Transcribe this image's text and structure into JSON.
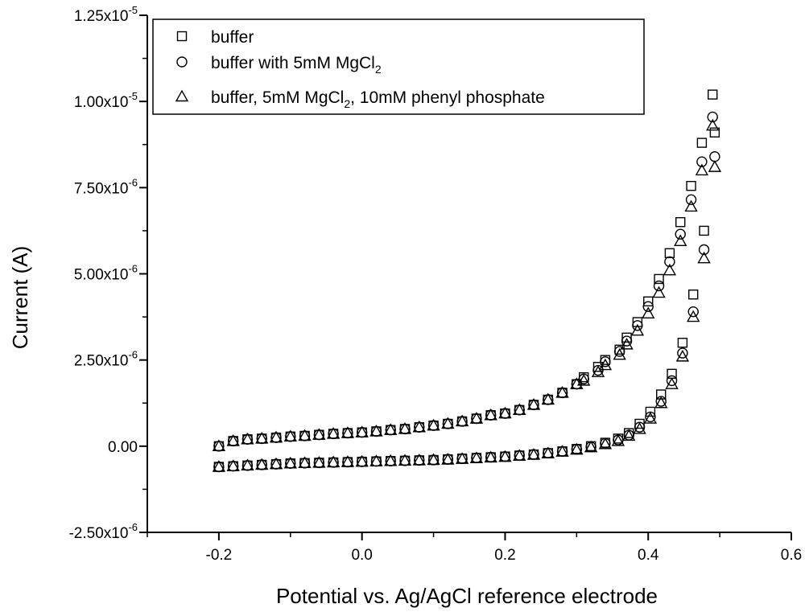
{
  "chart_data": {
    "type": "scatter",
    "title": "",
    "xlabel": "Potential vs. Ag/AgCl reference electrode",
    "ylabel": "Current (A)",
    "xlim": [
      -0.3,
      0.6
    ],
    "ylim": [
      -2.5e-06,
      1.25e-05
    ],
    "x_ticks": [
      -0.2,
      0.0,
      0.2,
      0.4,
      0.6
    ],
    "x_tick_labels": [
      "-0.2",
      "0.0",
      "0.2",
      "0.4",
      "0.6"
    ],
    "y_ticks": [
      -2.5e-06,
      0,
      2.5e-06,
      5e-06,
      7.5e-06,
      1e-05,
      1.25e-05
    ],
    "y_tick_labels": [
      {
        "mantissa": "-2.50x10",
        "exp": "-6"
      },
      {
        "mantissa": "0.00",
        "exp": ""
      },
      {
        "mantissa": "2.50x10",
        "exp": "-6"
      },
      {
        "mantissa": "5.00x10",
        "exp": "-6"
      },
      {
        "mantissa": "7.50x10",
        "exp": "-6"
      },
      {
        "mantissa": "1.00x10",
        "exp": "-5"
      },
      {
        "mantissa": "1.25x10",
        "exp": "-5"
      }
    ],
    "legend": [
      {
        "marker": "square",
        "parts": [
          {
            "t": "buffer"
          }
        ]
      },
      {
        "marker": "circle",
        "parts": [
          {
            "t": "buffer with 5mM MgCl"
          },
          {
            "t": "2",
            "sub": true
          }
        ]
      },
      {
        "marker": "triangle",
        "parts": [
          {
            "t": "buffer, 5mM MgCl"
          },
          {
            "t": "2",
            "sub": true
          },
          {
            "t": ", 10mM phenyl phosphate"
          }
        ]
      }
    ],
    "series": [
      {
        "name": "buffer",
        "marker": "square",
        "forward": {
          "x": [
            -0.2,
            -0.18,
            -0.16,
            -0.14,
            -0.12,
            -0.1,
            -0.08,
            -0.06,
            -0.04,
            -0.02,
            0.0,
            0.02,
            0.04,
            0.06,
            0.08,
            0.1,
            0.12,
            0.14,
            0.16,
            0.18,
            0.2,
            0.22,
            0.24,
            0.26,
            0.28,
            0.3,
            0.31,
            0.33,
            0.34,
            0.36,
            0.37,
            0.385,
            0.4,
            0.415,
            0.43,
            0.445,
            0.46,
            0.475,
            0.49
          ],
          "y": [
            0.0,
            1.5e-07,
            2e-07,
            2.2e-07,
            2.5e-07,
            2.8e-07,
            3e-07,
            3.3e-07,
            3.6e-07,
            3.8e-07,
            4e-07,
            4.3e-07,
            4.7e-07,
            5e-07,
            5.5e-07,
            6e-07,
            6.5e-07,
            7.2e-07,
            8e-07,
            9e-07,
            9.5e-07,
            1.05e-06,
            1.2e-06,
            1.35e-06,
            1.55e-06,
            1.8e-06,
            2e-06,
            2.3e-06,
            2.5e-06,
            2.8e-06,
            3.15e-06,
            3.6e-06,
            4.2e-06,
            4.85e-06,
            5.6e-06,
            6.5e-06,
            7.55e-06,
            8.8e-06,
            1.02e-05
          ]
        },
        "reverse": {
          "x": [
            0.493,
            0.478,
            0.463,
            0.448,
            0.433,
            0.418,
            0.403,
            0.388,
            0.373,
            0.358,
            0.34,
            0.32,
            0.3,
            0.28,
            0.26,
            0.24,
            0.22,
            0.2,
            0.18,
            0.16,
            0.14,
            0.12,
            0.1,
            0.08,
            0.06,
            0.04,
            0.02,
            0.0,
            -0.02,
            -0.04,
            -0.06,
            -0.08,
            -0.1,
            -0.12,
            -0.14,
            -0.16,
            -0.18,
            -0.2
          ],
          "y": [
            9.1e-06,
            6.25e-06,
            4.4e-06,
            3e-06,
            2.1e-06,
            1.5e-06,
            1e-06,
            6.5e-07,
            3.8e-07,
            2.2e-07,
            1e-07,
            0.0,
            -8e-08,
            -1.5e-07,
            -2e-07,
            -2.4e-07,
            -2.7e-07,
            -3e-07,
            -3.2e-07,
            -3.4e-07,
            -3.6e-07,
            -3.8e-07,
            -4e-07,
            -4.1e-07,
            -4.2e-07,
            -4.3e-07,
            -4.4e-07,
            -4.5e-07,
            -4.6e-07,
            -4.7e-07,
            -4.8e-07,
            -4.9e-07,
            -5e-07,
            -5.2e-07,
            -5.4e-07,
            -5.6e-07,
            -5.8e-07,
            -6e-07
          ]
        }
      },
      {
        "name": "buffer with 5mM MgCl2",
        "marker": "circle",
        "forward": {
          "x": [
            -0.2,
            -0.18,
            -0.16,
            -0.14,
            -0.12,
            -0.1,
            -0.08,
            -0.06,
            -0.04,
            -0.02,
            0.0,
            0.02,
            0.04,
            0.06,
            0.08,
            0.1,
            0.12,
            0.14,
            0.16,
            0.18,
            0.2,
            0.22,
            0.24,
            0.26,
            0.28,
            0.3,
            0.31,
            0.33,
            0.34,
            0.36,
            0.37,
            0.385,
            0.4,
            0.415,
            0.43,
            0.445,
            0.46,
            0.475,
            0.49
          ],
          "y": [
            0.0,
            1.5e-07,
            2e-07,
            2.2e-07,
            2.5e-07,
            2.8e-07,
            3e-07,
            3.3e-07,
            3.6e-07,
            3.8e-07,
            4e-07,
            4.3e-07,
            4.7e-07,
            5e-07,
            5.5e-07,
            6e-07,
            6.5e-07,
            7.2e-07,
            8e-07,
            9e-07,
            9.5e-07,
            1.05e-06,
            1.2e-06,
            1.35e-06,
            1.55e-06,
            1.8e-06,
            1.95e-06,
            2.2e-06,
            2.45e-06,
            2.75e-06,
            3.05e-06,
            3.5e-06,
            4.05e-06,
            4.65e-06,
            5.35e-06,
            6.15e-06,
            7.15e-06,
            8.25e-06,
            9.55e-06
          ]
        },
        "reverse": {
          "x": [
            0.493,
            0.478,
            0.463,
            0.448,
            0.433,
            0.418,
            0.403,
            0.388,
            0.373,
            0.358,
            0.34,
            0.32,
            0.3,
            0.28,
            0.26,
            0.24,
            0.22,
            0.2,
            0.18,
            0.16,
            0.14,
            0.12,
            0.1,
            0.08,
            0.06,
            0.04,
            0.02,
            0.0,
            -0.02,
            -0.04,
            -0.06,
            -0.08,
            -0.1,
            -0.12,
            -0.14,
            -0.16,
            -0.18,
            -0.2
          ],
          "y": [
            8.4e-06,
            5.7e-06,
            3.9e-06,
            2.7e-06,
            1.9e-06,
            1.3e-06,
            8.5e-07,
            5.5e-07,
            3.2e-07,
            1.8e-07,
            8e-08,
            -2e-08,
            -9e-08,
            -1.5e-07,
            -2e-07,
            -2.4e-07,
            -2.7e-07,
            -3e-07,
            -3.2e-07,
            -3.4e-07,
            -3.6e-07,
            -3.8e-07,
            -4e-07,
            -4.1e-07,
            -4.2e-07,
            -4.3e-07,
            -4.4e-07,
            -4.5e-07,
            -4.6e-07,
            -4.7e-07,
            -4.8e-07,
            -4.9e-07,
            -5e-07,
            -5.2e-07,
            -5.4e-07,
            -5.6e-07,
            -5.8e-07,
            -6e-07
          ]
        }
      },
      {
        "name": "buffer, 5mM MgCl2, 10mM phenyl phosphate",
        "marker": "triangle",
        "forward": {
          "x": [
            -0.2,
            -0.18,
            -0.16,
            -0.14,
            -0.12,
            -0.1,
            -0.08,
            -0.06,
            -0.04,
            -0.02,
            0.0,
            0.02,
            0.04,
            0.06,
            0.08,
            0.1,
            0.12,
            0.14,
            0.16,
            0.18,
            0.2,
            0.22,
            0.24,
            0.26,
            0.28,
            0.3,
            0.31,
            0.33,
            0.34,
            0.36,
            0.37,
            0.385,
            0.4,
            0.415,
            0.43,
            0.445,
            0.46,
            0.475,
            0.49
          ],
          "y": [
            0.0,
            1.5e-07,
            2e-07,
            2.2e-07,
            2.5e-07,
            2.8e-07,
            3e-07,
            3.3e-07,
            3.6e-07,
            3.8e-07,
            4e-07,
            4.3e-07,
            4.7e-07,
            5e-07,
            5.5e-07,
            6e-07,
            6.5e-07,
            7.2e-07,
            8e-07,
            9e-07,
            9.5e-07,
            1.05e-06,
            1.2e-06,
            1.35e-06,
            1.55e-06,
            1.8e-06,
            1.9e-06,
            2.15e-06,
            2.35e-06,
            2.65e-06,
            2.95e-06,
            3.35e-06,
            3.85e-06,
            4.45e-06,
            5.1e-06,
            5.95e-06,
            6.95e-06,
            8e-06,
            9.3e-06
          ]
        },
        "reverse": {
          "x": [
            0.493,
            0.478,
            0.463,
            0.448,
            0.433,
            0.418,
            0.403,
            0.388,
            0.373,
            0.358,
            0.34,
            0.32,
            0.3,
            0.28,
            0.26,
            0.24,
            0.22,
            0.2,
            0.18,
            0.16,
            0.14,
            0.12,
            0.1,
            0.08,
            0.06,
            0.04,
            0.02,
            0.0,
            -0.02,
            -0.04,
            -0.06,
            -0.08,
            -0.1,
            -0.12,
            -0.14,
            -0.16,
            -0.18,
            -0.2
          ],
          "y": [
            8.1e-06,
            5.45e-06,
            3.75e-06,
            2.6e-06,
            1.8e-06,
            1.25e-06,
            8e-07,
            5e-07,
            3e-07,
            1.5e-07,
            6e-08,
            -3e-08,
            -1e-07,
            -1.6e-07,
            -2.1e-07,
            -2.5e-07,
            -2.8e-07,
            -3.1e-07,
            -3.3e-07,
            -3.5e-07,
            -3.7e-07,
            -3.9e-07,
            -4e-07,
            -4.1e-07,
            -4.2e-07,
            -4.3e-07,
            -4.4e-07,
            -4.5e-07,
            -4.6e-07,
            -4.7e-07,
            -4.8e-07,
            -4.9e-07,
            -5e-07,
            -5.2e-07,
            -5.4e-07,
            -5.6e-07,
            -5.8e-07,
            -6e-07
          ]
        }
      }
    ],
    "colors": {
      "ink": "#000000",
      "background": "#ffffff"
    }
  }
}
